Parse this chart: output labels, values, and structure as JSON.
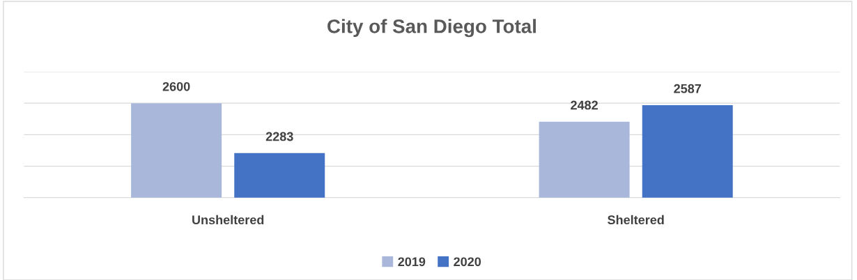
{
  "chart_data": {
    "type": "bar",
    "title": "City of San Diego Total",
    "categories": [
      "Unsheltered",
      "Sheltered"
    ],
    "series": [
      {
        "name": "2019",
        "color": "#a9b7db",
        "values": [
          2600,
          2482
        ]
      },
      {
        "name": "2020",
        "color": "#4472c4",
        "values": [
          2283,
          2587
        ]
      }
    ],
    "ylim": [
      2000,
      2800
    ],
    "yticks": [
      {
        "value": 2000,
        "label": null
      },
      {
        "value": 2200,
        "label": null
      },
      {
        "value": 2400,
        "label": null
      },
      {
        "value": 2600,
        "label": null
      },
      {
        "value": 2800,
        "label": null
      }
    ],
    "tick_labels": "x",
    "grid": "y",
    "legend": "bottom",
    "data_labels": true
  }
}
